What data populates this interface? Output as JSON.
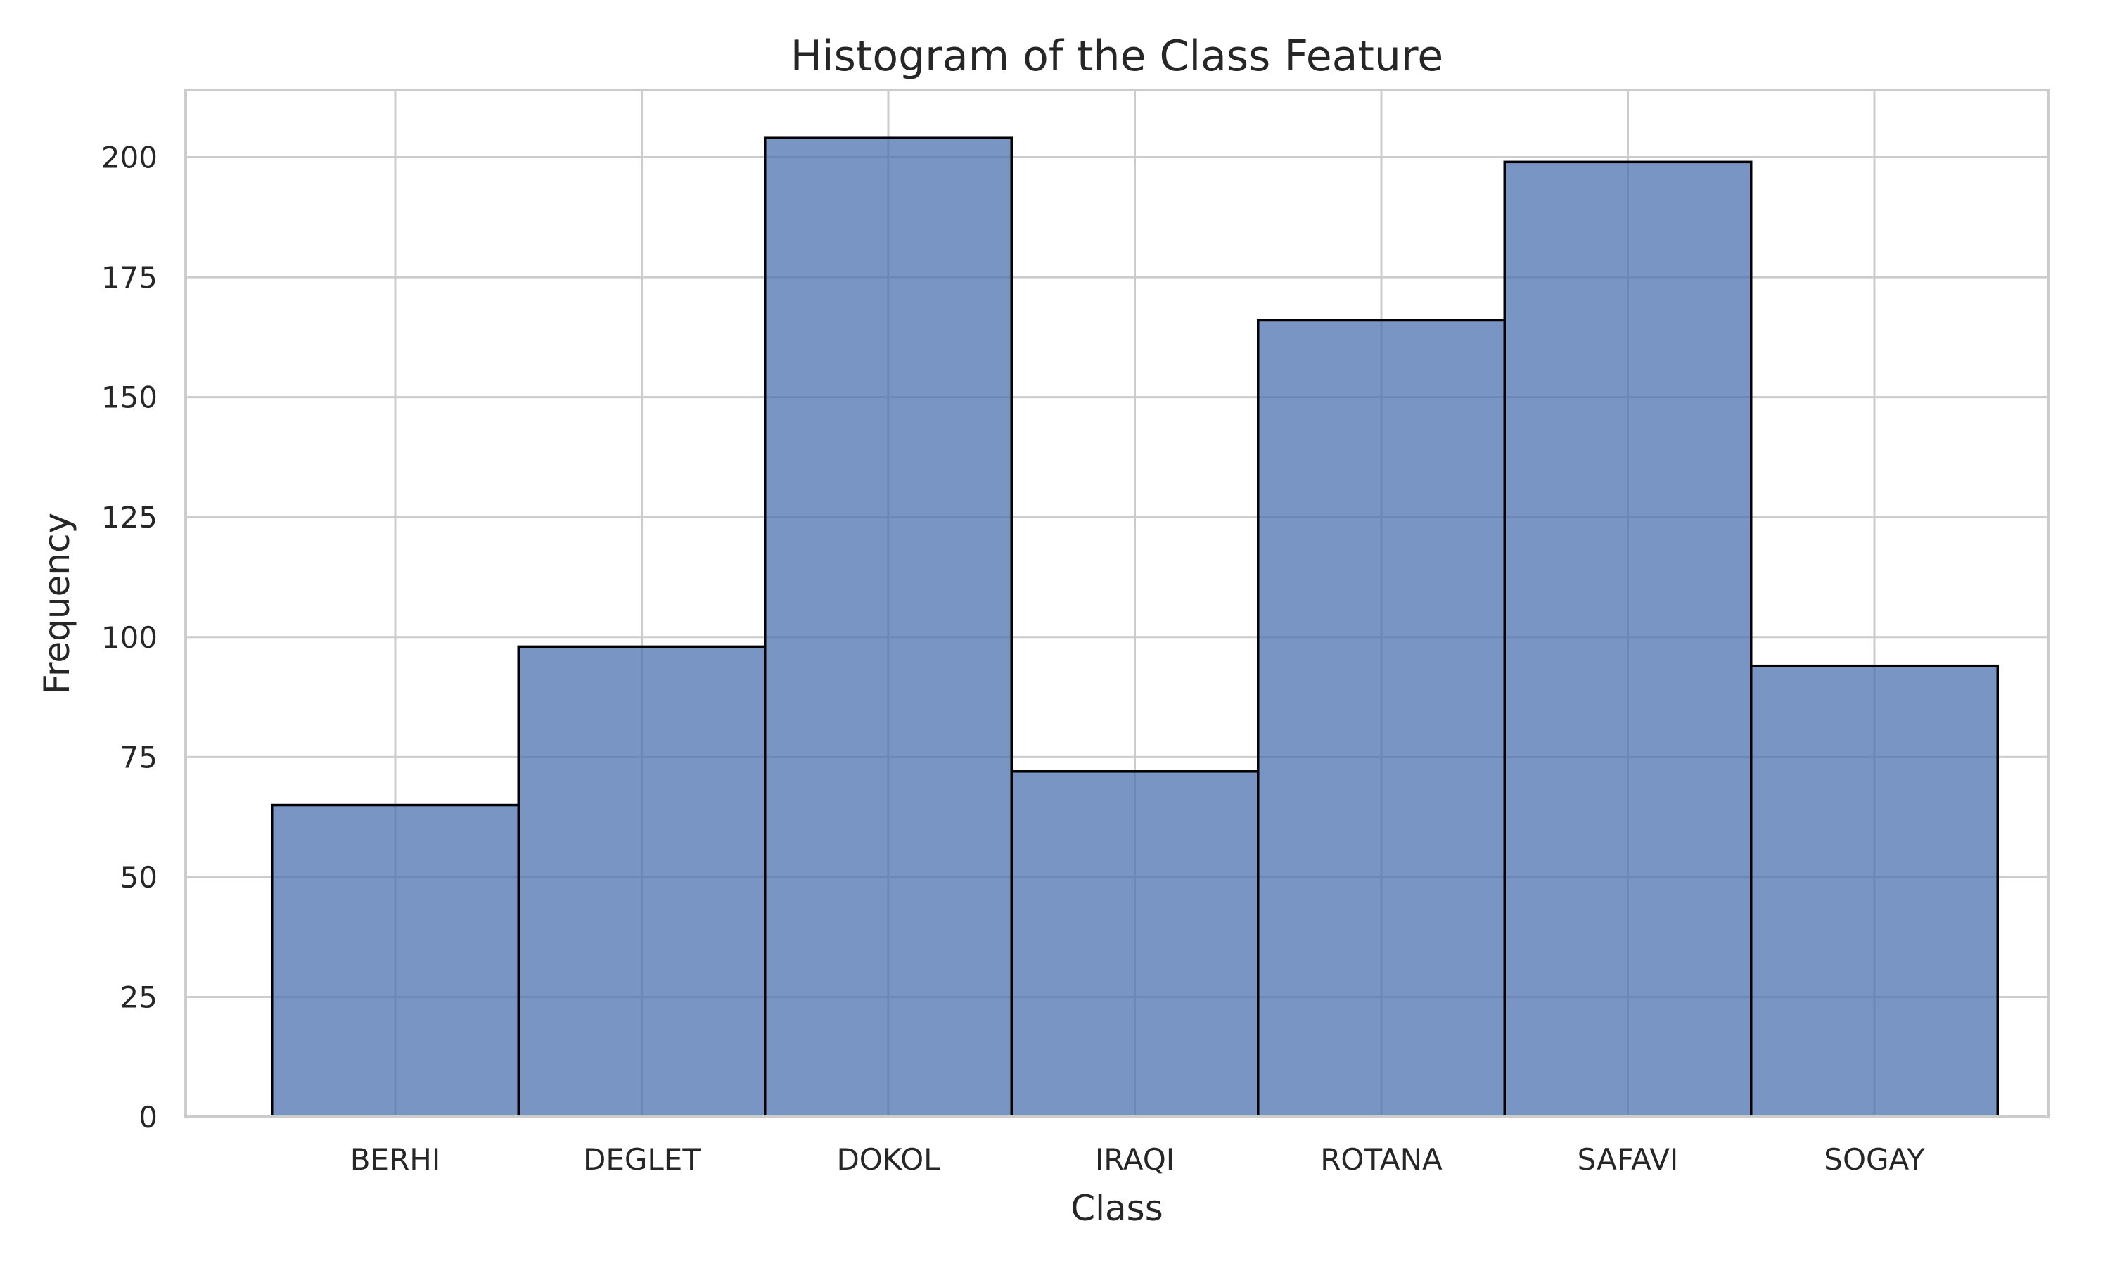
{
  "chart_data": {
    "type": "bar",
    "title": "Histogram of the Class Feature",
    "xlabel": "Class",
    "ylabel": "Frequency",
    "categories": [
      "BERHI",
      "DEGLET",
      "DOKOL",
      "IRAQI",
      "ROTANA",
      "SAFAVI",
      "SOGAY"
    ],
    "values": [
      65,
      98,
      204,
      72,
      166,
      199,
      94
    ],
    "ylim": [
      0,
      214
    ],
    "yticks": [
      0,
      25,
      50,
      75,
      100,
      125,
      150,
      175,
      200
    ],
    "grid": true,
    "legend": "none",
    "bar_color": "#4c72b0",
    "bar_opacity": 0.75,
    "edge_color": "#000000"
  }
}
